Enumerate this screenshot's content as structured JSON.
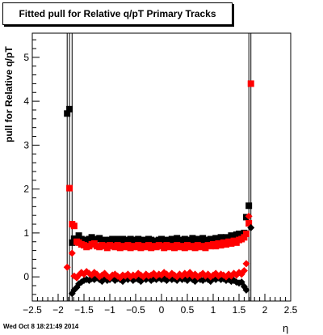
{
  "page": {
    "title": "Fitted pull for Relative q/pT  Primary Tracks",
    "timestamp": "Wed Oct  8 18:21:49 2014"
  },
  "chart_data": {
    "type": "scatter",
    "title": "Fitted pull for Relative q/pT  Primary Tracks",
    "xlabel": "η",
    "ylabel": "pull for Relative q/pT",
    "xlim": [
      -2.5,
      2.5
    ],
    "ylim": [
      -0.55,
      5.55
    ],
    "xticks": [
      "−2.5",
      "−2",
      "−1.5",
      "−1",
      "−0.5",
      "0",
      "0.5",
      "1",
      "1.5",
      "2",
      "2.5"
    ],
    "yticks": [
      "0",
      "1",
      "2",
      "3",
      "4",
      "5"
    ],
    "grid": false,
    "series": [
      {
        "marker": "square",
        "color": "#000000",
        "points": [
          [
            -1.825,
            3.72
          ],
          [
            -1.78,
            3.82
          ],
          [
            -1.73,
            0.78
          ],
          [
            -1.69,
            0.87
          ],
          [
            -1.64,
            0.84
          ],
          [
            -1.6,
            0.94
          ],
          [
            -1.55,
            0.86
          ],
          [
            -1.5,
            0.82
          ],
          [
            -1.45,
            0.84
          ],
          [
            -1.4,
            0.86
          ],
          [
            -1.35,
            0.9
          ],
          [
            -1.3,
            0.84
          ],
          [
            -1.25,
            0.86
          ],
          [
            -1.2,
            0.88
          ],
          [
            -1.15,
            0.8
          ],
          [
            -1.1,
            0.84
          ],
          [
            -1.05,
            0.78
          ],
          [
            -1.0,
            0.84
          ],
          [
            -0.95,
            0.86
          ],
          [
            -0.9,
            0.82
          ],
          [
            -0.85,
            0.86
          ],
          [
            -0.8,
            0.8
          ],
          [
            -0.75,
            0.86
          ],
          [
            -0.7,
            0.82
          ],
          [
            -0.65,
            0.84
          ],
          [
            -0.6,
            0.86
          ],
          [
            -0.55,
            0.8
          ],
          [
            -0.5,
            0.84
          ],
          [
            -0.45,
            0.86
          ],
          [
            -0.4,
            0.8
          ],
          [
            -0.35,
            0.84
          ],
          [
            -0.3,
            0.82
          ],
          [
            -0.25,
            0.86
          ],
          [
            -0.2,
            0.84
          ],
          [
            -0.15,
            0.8
          ],
          [
            -0.1,
            0.82
          ],
          [
            -0.05,
            0.84
          ],
          [
            0.0,
            0.86
          ],
          [
            0.05,
            0.82
          ],
          [
            0.1,
            0.84
          ],
          [
            0.15,
            0.8
          ],
          [
            0.2,
            0.86
          ],
          [
            0.25,
            0.84
          ],
          [
            0.3,
            0.88
          ],
          [
            0.35,
            0.82
          ],
          [
            0.4,
            0.84
          ],
          [
            0.45,
            0.86
          ],
          [
            0.5,
            0.8
          ],
          [
            0.55,
            0.84
          ],
          [
            0.6,
            0.88
          ],
          [
            0.65,
            0.82
          ],
          [
            0.7,
            0.86
          ],
          [
            0.75,
            0.84
          ],
          [
            0.8,
            0.88
          ],
          [
            0.85,
            0.84
          ],
          [
            0.9,
            0.8
          ],
          [
            0.95,
            0.86
          ],
          [
            1.0,
            0.84
          ],
          [
            1.05,
            0.88
          ],
          [
            1.1,
            0.86
          ],
          [
            1.15,
            0.9
          ],
          [
            1.2,
            0.84
          ],
          [
            1.25,
            0.9
          ],
          [
            1.3,
            0.86
          ],
          [
            1.35,
            0.94
          ],
          [
            1.4,
            0.88
          ],
          [
            1.45,
            0.96
          ],
          [
            1.5,
            0.98
          ],
          [
            1.55,
            0.92
          ],
          [
            1.6,
            1.0
          ],
          [
            1.64,
            1.36
          ],
          [
            1.69,
            1.62
          ]
        ]
      },
      {
        "marker": "square",
        "color": "#ff0000",
        "points": [
          [
            -1.78,
            2.02
          ],
          [
            -1.73,
            1.2
          ],
          [
            -1.69,
            1.16
          ],
          [
            -1.64,
            0.8
          ],
          [
            -1.6,
            0.78
          ],
          [
            -1.55,
            0.74
          ],
          [
            -1.5,
            0.72
          ],
          [
            -1.45,
            0.68
          ],
          [
            -1.4,
            0.7
          ],
          [
            -1.35,
            0.74
          ],
          [
            -1.3,
            0.76
          ],
          [
            -1.25,
            0.7
          ],
          [
            -1.2,
            0.68
          ],
          [
            -1.15,
            0.72
          ],
          [
            -1.1,
            0.7
          ],
          [
            -1.05,
            0.66
          ],
          [
            -1.0,
            0.72
          ],
          [
            -0.95,
            0.7
          ],
          [
            -0.9,
            0.68
          ],
          [
            -0.85,
            0.72
          ],
          [
            -0.8,
            0.66
          ],
          [
            -0.75,
            0.7
          ],
          [
            -0.7,
            0.68
          ],
          [
            -0.65,
            0.72
          ],
          [
            -0.6,
            0.66
          ],
          [
            -0.55,
            0.7
          ],
          [
            -0.5,
            0.68
          ],
          [
            -0.45,
            0.72
          ],
          [
            -0.4,
            0.66
          ],
          [
            -0.35,
            0.7
          ],
          [
            -0.3,
            0.68
          ],
          [
            -0.25,
            0.72
          ],
          [
            -0.2,
            0.66
          ],
          [
            -0.15,
            0.7
          ],
          [
            -0.1,
            0.68
          ],
          [
            -0.05,
            0.72
          ],
          [
            0.0,
            0.7
          ],
          [
            0.05,
            0.66
          ],
          [
            0.1,
            0.72
          ],
          [
            0.15,
            0.68
          ],
          [
            0.2,
            0.7
          ],
          [
            0.25,
            0.66
          ],
          [
            0.3,
            0.72
          ],
          [
            0.35,
            0.68
          ],
          [
            0.4,
            0.7
          ],
          [
            0.45,
            0.66
          ],
          [
            0.5,
            0.72
          ],
          [
            0.55,
            0.68
          ],
          [
            0.6,
            0.7
          ],
          [
            0.65,
            0.66
          ],
          [
            0.7,
            0.72
          ],
          [
            0.75,
            0.68
          ],
          [
            0.8,
            0.7
          ],
          [
            0.85,
            0.66
          ],
          [
            0.9,
            0.72
          ],
          [
            0.95,
            0.7
          ],
          [
            1.0,
            0.74
          ],
          [
            1.05,
            0.7
          ],
          [
            1.1,
            0.76
          ],
          [
            1.15,
            0.72
          ],
          [
            1.2,
            0.78
          ],
          [
            1.25,
            0.74
          ],
          [
            1.3,
            0.8
          ],
          [
            1.35,
            0.76
          ],
          [
            1.4,
            0.82
          ],
          [
            1.45,
            0.78
          ],
          [
            1.5,
            0.84
          ],
          [
            1.55,
            0.86
          ],
          [
            1.6,
            0.9
          ],
          [
            1.64,
            0.98
          ],
          [
            1.69,
            1.22
          ],
          [
            1.73,
            4.4
          ]
        ]
      },
      {
        "marker": "diamond",
        "color": "#000000",
        "points": [
          [
            -1.73,
            -0.38
          ],
          [
            -1.69,
            -0.3
          ],
          [
            -1.64,
            -0.24
          ],
          [
            -1.6,
            -0.16
          ],
          [
            -1.55,
            -0.12
          ],
          [
            -1.5,
            -0.08
          ],
          [
            -1.45,
            -0.06
          ],
          [
            -1.4,
            -0.08
          ],
          [
            -1.35,
            -0.04
          ],
          [
            -1.3,
            -0.06
          ],
          [
            -1.25,
            -0.02
          ],
          [
            -1.2,
            -0.06
          ],
          [
            -1.15,
            -0.1
          ],
          [
            -1.1,
            -0.04
          ],
          [
            -1.05,
            -0.08
          ],
          [
            -1.0,
            -0.06
          ],
          [
            -0.95,
            -0.02
          ],
          [
            -0.9,
            -0.08
          ],
          [
            -0.85,
            -0.04
          ],
          [
            -0.8,
            -0.06
          ],
          [
            -0.75,
            -0.1
          ],
          [
            -0.7,
            -0.04
          ],
          [
            -0.65,
            -0.06
          ],
          [
            -0.6,
            -0.02
          ],
          [
            -0.55,
            -0.08
          ],
          [
            -0.5,
            -0.04
          ],
          [
            -0.45,
            -0.06
          ],
          [
            -0.4,
            -0.1
          ],
          [
            -0.35,
            -0.04
          ],
          [
            -0.3,
            -0.06
          ],
          [
            -0.25,
            -0.02
          ],
          [
            -0.2,
            -0.08
          ],
          [
            -0.15,
            -0.04
          ],
          [
            -0.1,
            -0.06
          ],
          [
            -0.05,
            -0.02
          ],
          [
            0.0,
            -0.06
          ],
          [
            0.05,
            -0.04
          ],
          [
            0.1,
            -0.08
          ],
          [
            0.15,
            -0.02
          ],
          [
            0.2,
            -0.06
          ],
          [
            0.25,
            -0.04
          ],
          [
            0.3,
            -0.08
          ],
          [
            0.35,
            -0.02
          ],
          [
            0.4,
            -0.06
          ],
          [
            0.45,
            -0.04
          ],
          [
            0.5,
            -0.08
          ],
          [
            0.55,
            -0.02
          ],
          [
            0.6,
            -0.06
          ],
          [
            0.65,
            -0.1
          ],
          [
            0.7,
            -0.04
          ],
          [
            0.75,
            -0.06
          ],
          [
            0.8,
            -0.08
          ],
          [
            0.85,
            -0.04
          ],
          [
            0.9,
            -0.06
          ],
          [
            0.95,
            -0.1
          ],
          [
            1.0,
            -0.04
          ],
          [
            1.05,
            -0.06
          ],
          [
            1.1,
            -0.02
          ],
          [
            1.15,
            -0.06
          ],
          [
            1.2,
            -0.04
          ],
          [
            1.25,
            -0.08
          ],
          [
            1.3,
            -0.06
          ],
          [
            1.35,
            -0.1
          ],
          [
            1.4,
            -0.08
          ],
          [
            1.45,
            -0.12
          ],
          [
            1.5,
            -0.14
          ],
          [
            1.55,
            -0.12
          ],
          [
            1.6,
            -0.22
          ],
          [
            1.64,
            -0.3
          ],
          [
            1.73,
            1.12
          ]
        ]
      },
      {
        "marker": "diamond",
        "color": "#ff0000",
        "points": [
          [
            -1.825,
            0.22
          ],
          [
            -1.73,
            0.54
          ],
          [
            -1.69,
            0.02
          ],
          [
            -1.64,
            -0.02
          ],
          [
            -1.6,
            0.04
          ],
          [
            -1.55,
            0.1
          ],
          [
            -1.5,
            0.06
          ],
          [
            -1.45,
            0.12
          ],
          [
            -1.4,
            0.08
          ],
          [
            -1.35,
            0.04
          ],
          [
            -1.3,
            0.1
          ],
          [
            -1.25,
            0.06
          ],
          [
            -1.2,
            0.0
          ],
          [
            -1.15,
            0.04
          ],
          [
            -1.1,
            0.08
          ],
          [
            -1.05,
            0.02
          ],
          [
            -1.0,
            -0.02
          ],
          [
            -0.95,
            0.04
          ],
          [
            -0.9,
            0.06
          ],
          [
            -0.85,
            0.02
          ],
          [
            -0.8,
            -0.02
          ],
          [
            -0.75,
            0.04
          ],
          [
            -0.7,
            0.02
          ],
          [
            -0.65,
            0.06
          ],
          [
            -0.6,
            0.0
          ],
          [
            -0.55,
            0.04
          ],
          [
            -0.5,
            0.02
          ],
          [
            -0.45,
            0.08
          ],
          [
            -0.4,
            0.04
          ],
          [
            -0.35,
            0.0
          ],
          [
            -0.3,
            0.06
          ],
          [
            -0.25,
            0.02
          ],
          [
            -0.2,
            0.04
          ],
          [
            -0.15,
            0.08
          ],
          [
            -0.1,
            0.02
          ],
          [
            -0.05,
            0.06
          ],
          [
            0.0,
            0.04
          ],
          [
            0.05,
            0.1
          ],
          [
            0.1,
            0.06
          ],
          [
            0.15,
            0.02
          ],
          [
            0.2,
            0.08
          ],
          [
            0.25,
            0.04
          ],
          [
            0.3,
            0.0
          ],
          [
            0.35,
            0.06
          ],
          [
            0.4,
            0.02
          ],
          [
            0.45,
            0.08
          ],
          [
            0.5,
            0.04
          ],
          [
            0.55,
            0.1
          ],
          [
            0.6,
            0.02
          ],
          [
            0.65,
            0.06
          ],
          [
            0.7,
            0.0
          ],
          [
            0.75,
            0.04
          ],
          [
            0.8,
            0.08
          ],
          [
            0.85,
            0.02
          ],
          [
            0.9,
            0.06
          ],
          [
            0.95,
            0.0
          ],
          [
            1.0,
            0.04
          ],
          [
            1.05,
            0.08
          ],
          [
            1.1,
            0.02
          ],
          [
            1.15,
            0.06
          ],
          [
            1.2,
            0.04
          ],
          [
            1.25,
            0.0
          ],
          [
            1.3,
            0.06
          ],
          [
            1.35,
            0.02
          ],
          [
            1.4,
            0.08
          ],
          [
            1.45,
            0.04
          ],
          [
            1.5,
            0.1
          ],
          [
            1.55,
            0.06
          ],
          [
            1.6,
            0.14
          ],
          [
            1.64,
            0.3
          ],
          [
            1.69,
            1.38
          ]
        ]
      }
    ]
  }
}
